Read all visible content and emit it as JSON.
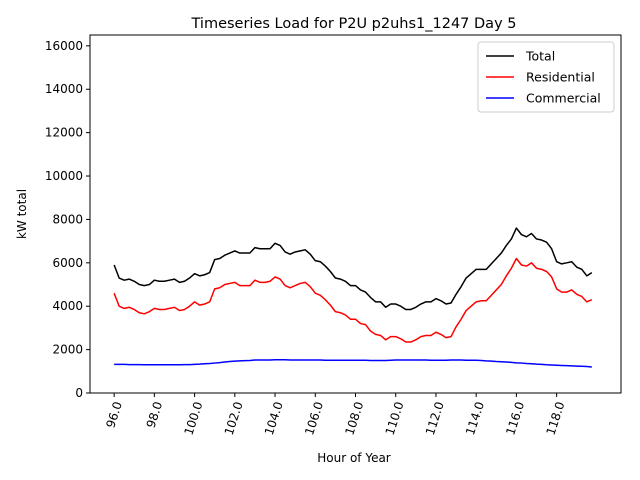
{
  "chart_data": {
    "type": "line",
    "title": "Timeseries Load for P2U p2uhs1_1247  Day 5",
    "xlabel": "Hour of Year",
    "ylabel": "kW total",
    "xlim": [
      94.8,
      121.2
    ],
    "ylim": [
      0,
      16500
    ],
    "x_ticks": [
      "96.0",
      "98.0",
      "100.0",
      "102.0",
      "104.0",
      "106.0",
      "108.0",
      "110.0",
      "112.0",
      "114.0",
      "116.0",
      "118.0"
    ],
    "y_ticks": [
      "0",
      "2000",
      "4000",
      "6000",
      "8000",
      "10000",
      "12000",
      "14000",
      "16000"
    ],
    "legend_position": "top-right",
    "grid": false,
    "x": [
      96.0,
      96.25,
      96.5,
      96.75,
      97.0,
      97.25,
      97.5,
      97.75,
      98.0,
      98.25,
      98.5,
      98.75,
      99.0,
      99.25,
      99.5,
      99.75,
      100.0,
      100.25,
      100.5,
      100.75,
      101.0,
      101.25,
      101.5,
      101.75,
      102.0,
      102.25,
      102.5,
      102.75,
      103.0,
      103.25,
      103.5,
      103.75,
      104.0,
      104.25,
      104.5,
      104.75,
      105.0,
      105.25,
      105.5,
      105.75,
      106.0,
      106.25,
      106.5,
      106.75,
      107.0,
      107.25,
      107.5,
      107.75,
      108.0,
      108.25,
      108.5,
      108.75,
      109.0,
      109.25,
      109.5,
      109.75,
      110.0,
      110.25,
      110.5,
      110.75,
      111.0,
      111.25,
      111.5,
      111.75,
      112.0,
      112.25,
      112.5,
      112.75,
      113.0,
      113.25,
      113.5,
      113.75,
      114.0,
      114.25,
      114.5,
      114.75,
      115.0,
      115.25,
      115.5,
      115.75,
      116.0,
      116.25,
      116.5,
      116.75,
      117.0,
      117.25,
      117.5,
      117.75,
      118.0,
      118.25,
      118.5,
      118.75,
      119.0,
      119.25,
      119.5,
      119.75
    ],
    "series": [
      {
        "name": "Total",
        "color": "#000000",
        "values": [
          5900,
          5300,
          5200,
          5250,
          5150,
          5000,
          4950,
          5000,
          5200,
          5150,
          5150,
          5200,
          5250,
          5100,
          5150,
          5300,
          5500,
          5400,
          5450,
          5550,
          6150,
          6200,
          6350,
          6450,
          6550,
          6450,
          6450,
          6450,
          6700,
          6650,
          6650,
          6650,
          6900,
          6800,
          6500,
          6400,
          6500,
          6550,
          6600,
          6400,
          6100,
          6050,
          5850,
          5600,
          5300,
          5250,
          5150,
          4950,
          4950,
          4750,
          4650,
          4400,
          4200,
          4200,
          3950,
          4100,
          4100,
          4000,
          3850,
          3850,
          3950,
          4100,
          4200,
          4200,
          4350,
          4250,
          4100,
          4150,
          4550,
          4900,
          5300,
          5500,
          5700,
          5700,
          5700,
          5950,
          6200,
          6450,
          6800,
          7100,
          7600,
          7300,
          7200,
          7350,
          7100,
          7050,
          6950,
          6650,
          6050,
          5950,
          6000,
          6050,
          5800,
          5700,
          5400,
          5550
        ]
      },
      {
        "name": "Residential",
        "color": "#ff0000",
        "values": [
          4600,
          4000,
          3900,
          3950,
          3850,
          3700,
          3650,
          3750,
          3900,
          3850,
          3850,
          3900,
          3950,
          3800,
          3850,
          4000,
          4200,
          4050,
          4100,
          4200,
          4800,
          4850,
          5000,
          5050,
          5100,
          4950,
          4950,
          4950,
          5200,
          5100,
          5100,
          5150,
          5350,
          5250,
          4950,
          4850,
          4950,
          5050,
          5100,
          4900,
          4600,
          4500,
          4300,
          4050,
          3750,
          3700,
          3600,
          3400,
          3400,
          3200,
          3150,
          2850,
          2700,
          2650,
          2450,
          2600,
          2600,
          2500,
          2350,
          2350,
          2450,
          2600,
          2650,
          2650,
          2800,
          2700,
          2550,
          2600,
          3050,
          3400,
          3800,
          4000,
          4200,
          4250,
          4250,
          4500,
          4750,
          5000,
          5400,
          5750,
          6200,
          5900,
          5850,
          6000,
          5750,
          5700,
          5600,
          5350,
          4800,
          4650,
          4650,
          4750,
          4550,
          4450,
          4200,
          4300
        ]
      },
      {
        "name": "Commercial",
        "color": "#0000ff",
        "values": [
          1320,
          1320,
          1320,
          1310,
          1310,
          1310,
          1300,
          1300,
          1300,
          1300,
          1300,
          1300,
          1300,
          1300,
          1310,
          1310,
          1320,
          1330,
          1350,
          1360,
          1380,
          1400,
          1430,
          1450,
          1470,
          1480,
          1490,
          1500,
          1520,
          1520,
          1520,
          1520,
          1530,
          1530,
          1530,
          1520,
          1520,
          1520,
          1520,
          1520,
          1520,
          1520,
          1510,
          1510,
          1510,
          1510,
          1510,
          1510,
          1510,
          1510,
          1510,
          1500,
          1500,
          1500,
          1500,
          1510,
          1520,
          1520,
          1520,
          1520,
          1520,
          1520,
          1520,
          1510,
          1510,
          1510,
          1510,
          1520,
          1520,
          1520,
          1510,
          1510,
          1510,
          1500,
          1480,
          1470,
          1450,
          1440,
          1430,
          1410,
          1390,
          1380,
          1360,
          1350,
          1330,
          1320,
          1300,
          1290,
          1280,
          1270,
          1260,
          1250,
          1240,
          1230,
          1220,
          1200
        ]
      }
    ]
  }
}
